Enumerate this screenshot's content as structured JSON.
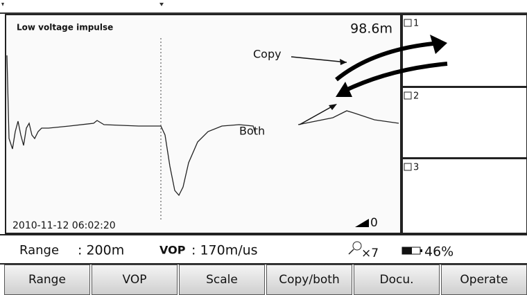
{
  "screen": {
    "trace_title": "Low voltage impulse",
    "distance": "98.6m",
    "annotations": {
      "copy": "Copy",
      "both": "Both"
    },
    "timestamp": "2010-11-12 06:02:20",
    "cursor_value": "0",
    "slots": [
      "1",
      "2",
      "3"
    ],
    "status": {
      "range_label": "Range",
      "range_value": ": 200m",
      "vop_label": "VOP",
      "vop_value": ": 170m/us",
      "zoom": "×7",
      "battery": "46%"
    },
    "buttons": [
      "Range",
      "VOP",
      "Scale",
      "Copy/both",
      "Docu.",
      "Operate"
    ]
  }
}
